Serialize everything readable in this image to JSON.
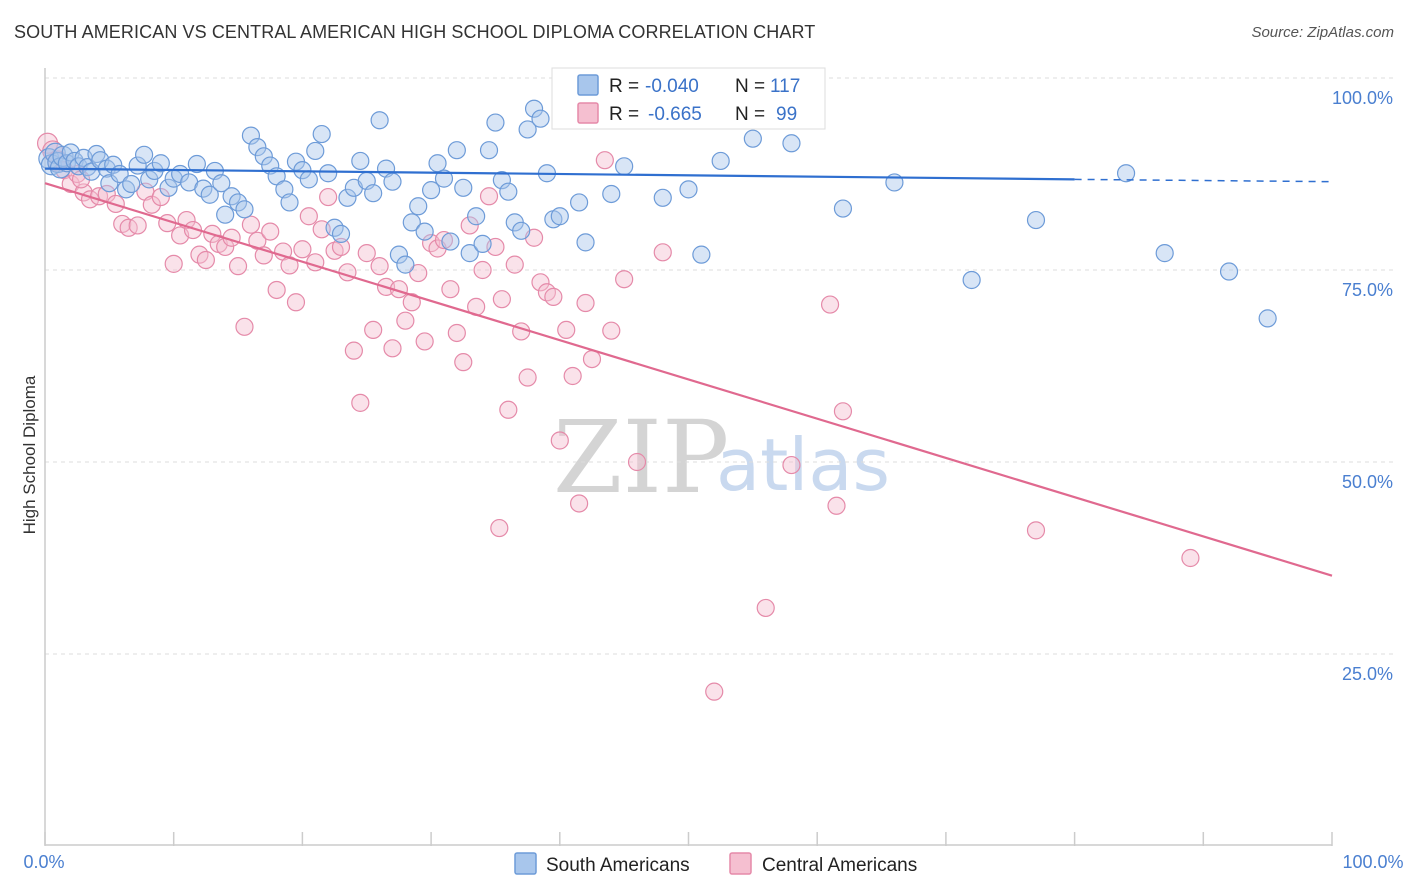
{
  "title": "SOUTH AMERICAN VS CENTRAL AMERICAN HIGH SCHOOL DIPLOMA CORRELATION CHART",
  "source": "Source: ZipAtlas.com",
  "watermark": {
    "zip": "ZIP",
    "atlas": "atlas"
  },
  "colors": {
    "blue_fill": "#a8c6ec",
    "blue_stroke": "#6d9bd8",
    "blue_line": "#2f6fd0",
    "pink_fill": "#f5bfd0",
    "pink_stroke": "#e58aa9",
    "pink_line": "#e0698f",
    "grid": "#dddddd",
    "tick_text": "#4a7fd0"
  },
  "legend_box": {
    "r_label": "R =",
    "n_label": "N =",
    "rows": [
      {
        "series": "South Americans",
        "r": "-0.040",
        "n": "117"
      },
      {
        "series": "Central Americans",
        "r": "-0.665",
        "n": "99"
      }
    ]
  },
  "bottom_legend": [
    "South Americans",
    "Central Americans"
  ],
  "chart_data": {
    "type": "scatter",
    "title": "SOUTH AMERICAN VS CENTRAL AMERICAN HIGH SCHOOL DIPLOMA CORRELATION CHART",
    "xlabel": "",
    "ylabel": "High School Diploma",
    "xlim": [
      0,
      100
    ],
    "ylim": [
      0,
      100
    ],
    "x_tick_labels": [
      "0.0%",
      "100.0%"
    ],
    "y_tick_labels": [
      "100.0%",
      "75.0%",
      "50.0%",
      "25.0%"
    ],
    "y_ticks": [
      100,
      75,
      50,
      25
    ],
    "grid": true,
    "series": [
      {
        "name": "South Americans",
        "r": -0.04,
        "n": 117,
        "trend": {
          "x_start": 0,
          "y_start": 88.2,
          "x_end": 80,
          "y_end": 86.8,
          "dashed_to_x": 100,
          "dashed_y_end": 86.5
        },
        "points": [
          [
            0.3,
            89.5
          ],
          [
            0.5,
            88.7
          ],
          [
            0.8,
            90.2
          ],
          [
            1.0,
            89.0
          ],
          [
            1.2,
            88.3
          ],
          [
            1.4,
            89.8
          ],
          [
            1.7,
            88.9
          ],
          [
            2.0,
            90.3
          ],
          [
            2.3,
            89.2
          ],
          [
            2.6,
            88.5
          ],
          [
            3.0,
            89.6
          ],
          [
            3.3,
            88.4
          ],
          [
            3.6,
            87.8
          ],
          [
            4.0,
            90.1
          ],
          [
            4.3,
            89.3
          ],
          [
            4.8,
            88.2
          ],
          [
            5.0,
            86.3
          ],
          [
            5.3,
            88.7
          ],
          [
            5.8,
            87.5
          ],
          [
            6.3,
            85.5
          ],
          [
            6.7,
            86.2
          ],
          [
            7.2,
            88.6
          ],
          [
            7.7,
            90.0
          ],
          [
            8.1,
            86.8
          ],
          [
            8.5,
            87.9
          ],
          [
            9.0,
            88.9
          ],
          [
            9.6,
            85.7
          ],
          [
            10.0,
            86.9
          ],
          [
            10.5,
            87.5
          ],
          [
            11.2,
            86.4
          ],
          [
            11.8,
            88.8
          ],
          [
            12.3,
            85.6
          ],
          [
            12.8,
            84.8
          ],
          [
            13.2,
            87.9
          ],
          [
            13.7,
            86.3
          ],
          [
            14.0,
            82.2
          ],
          [
            14.5,
            84.6
          ],
          [
            15.0,
            83.8
          ],
          [
            15.5,
            82.9
          ],
          [
            16.0,
            92.5
          ],
          [
            16.5,
            91.0
          ],
          [
            17.0,
            89.8
          ],
          [
            17.5,
            88.6
          ],
          [
            18.0,
            87.2
          ],
          [
            18.6,
            85.5
          ],
          [
            19.0,
            83.8
          ],
          [
            19.5,
            89.1
          ],
          [
            20.0,
            88.0
          ],
          [
            20.5,
            86.8
          ],
          [
            21.0,
            90.5
          ],
          [
            21.5,
            92.7
          ],
          [
            22.0,
            87.6
          ],
          [
            22.5,
            80.5
          ],
          [
            23.0,
            79.7
          ],
          [
            23.5,
            84.4
          ],
          [
            24.0,
            85.7
          ],
          [
            24.5,
            89.2
          ],
          [
            25.0,
            86.6
          ],
          [
            25.5,
            85.0
          ],
          [
            26.0,
            94.5
          ],
          [
            26.5,
            88.2
          ],
          [
            27.0,
            86.5
          ],
          [
            27.5,
            77.0
          ],
          [
            28.0,
            75.7
          ],
          [
            28.5,
            81.2
          ],
          [
            29.0,
            83.3
          ],
          [
            29.5,
            80.0
          ],
          [
            30.0,
            85.4
          ],
          [
            30.5,
            88.9
          ],
          [
            31.0,
            86.9
          ],
          [
            31.5,
            78.7
          ],
          [
            32.0,
            90.6
          ],
          [
            32.5,
            85.7
          ],
          [
            33.0,
            77.2
          ],
          [
            33.5,
            82.0
          ],
          [
            34.0,
            78.4
          ],
          [
            34.5,
            90.6
          ],
          [
            35.0,
            94.2
          ],
          [
            35.5,
            86.7
          ],
          [
            36.0,
            85.2
          ],
          [
            36.5,
            81.2
          ],
          [
            37.0,
            80.1
          ],
          [
            37.5,
            93.3
          ],
          [
            38.0,
            96.0
          ],
          [
            38.5,
            94.7
          ],
          [
            39.0,
            87.6
          ],
          [
            39.5,
            81.6
          ],
          [
            40.0,
            82.0
          ],
          [
            40.5,
            98.7
          ],
          [
            41.0,
            98.4
          ],
          [
            41.5,
            83.8
          ],
          [
            42.0,
            78.6
          ],
          [
            42.5,
            96.5
          ],
          [
            43.0,
            97.8
          ],
          [
            43.5,
            100.0
          ],
          [
            44.0,
            84.9
          ],
          [
            45.0,
            88.5
          ],
          [
            46.0,
            100.0
          ],
          [
            46.5,
            97.3
          ],
          [
            47.0,
            96.8
          ],
          [
            47.5,
            97.2
          ],
          [
            48.0,
            84.4
          ],
          [
            49.0,
            100.0
          ],
          [
            50.0,
            85.5
          ],
          [
            51.0,
            77.0
          ],
          [
            52.5,
            89.2
          ],
          [
            53.0,
            97.4
          ],
          [
            55.0,
            92.1
          ],
          [
            58.0,
            91.5
          ],
          [
            62.0,
            83.0
          ],
          [
            66.0,
            86.4
          ],
          [
            72.0,
            73.7
          ],
          [
            77.0,
            81.5
          ],
          [
            84.0,
            87.6
          ],
          [
            87.0,
            77.2
          ],
          [
            92.0,
            74.8
          ],
          [
            95.0,
            68.7
          ]
        ]
      },
      {
        "name": "Central Americans",
        "r": -0.665,
        "n": 99,
        "trend": {
          "x_start": 0,
          "y_start": 86.3,
          "x_end": 100,
          "y_end": 35.2
        },
        "points": [
          [
            0.2,
            91.5
          ],
          [
            0.6,
            90.5
          ],
          [
            1.0,
            89.2
          ],
          [
            1.5,
            88.0
          ],
          [
            2.0,
            86.2
          ],
          [
            2.5,
            87.5
          ],
          [
            3.0,
            85.1
          ],
          [
            3.5,
            84.2
          ],
          [
            4.2,
            84.6
          ],
          [
            4.8,
            84.9
          ],
          [
            5.5,
            83.6
          ],
          [
            6.0,
            81.0
          ],
          [
            6.5,
            80.5
          ],
          [
            7.2,
            80.8
          ],
          [
            7.8,
            85.2
          ],
          [
            8.3,
            83.5
          ],
          [
            9.0,
            84.5
          ],
          [
            9.5,
            81.1
          ],
          [
            10.0,
            75.8
          ],
          [
            10.5,
            79.5
          ],
          [
            11.0,
            81.5
          ],
          [
            11.5,
            80.2
          ],
          [
            12.0,
            77.0
          ],
          [
            12.5,
            76.3
          ],
          [
            13.0,
            79.7
          ],
          [
            13.5,
            78.4
          ],
          [
            14.0,
            78.0
          ],
          [
            14.5,
            79.2
          ],
          [
            15.0,
            75.5
          ],
          [
            15.5,
            67.6
          ],
          [
            16.0,
            80.9
          ],
          [
            16.5,
            78.8
          ],
          [
            17.0,
            76.9
          ],
          [
            17.5,
            80.0
          ],
          [
            18.0,
            72.4
          ],
          [
            18.5,
            77.4
          ],
          [
            19.0,
            75.6
          ],
          [
            19.5,
            70.8
          ],
          [
            20.0,
            77.7
          ],
          [
            20.5,
            82.0
          ],
          [
            21.0,
            76.0
          ],
          [
            21.5,
            80.3
          ],
          [
            22.0,
            84.5
          ],
          [
            22.5,
            77.5
          ],
          [
            23.0,
            78.0
          ],
          [
            23.5,
            74.7
          ],
          [
            24.0,
            64.5
          ],
          [
            24.5,
            57.7
          ],
          [
            25.0,
            77.2
          ],
          [
            25.5,
            67.2
          ],
          [
            26.0,
            75.5
          ],
          [
            26.5,
            72.8
          ],
          [
            27.0,
            64.8
          ],
          [
            27.5,
            72.5
          ],
          [
            28.0,
            68.4
          ],
          [
            28.5,
            70.8
          ],
          [
            29.0,
            74.6
          ],
          [
            29.5,
            65.7
          ],
          [
            30.0,
            78.5
          ],
          [
            30.5,
            77.8
          ],
          [
            31.0,
            78.9
          ],
          [
            31.5,
            72.5
          ],
          [
            32.0,
            66.8
          ],
          [
            32.5,
            63.0
          ],
          [
            33.0,
            80.8
          ],
          [
            33.5,
            70.2
          ],
          [
            34.0,
            75.0
          ],
          [
            34.5,
            84.6
          ],
          [
            35.0,
            78.0
          ],
          [
            35.5,
            71.2
          ],
          [
            36.0,
            56.8
          ],
          [
            36.5,
            75.7
          ],
          [
            37.0,
            67.0
          ],
          [
            37.5,
            61.0
          ],
          [
            38.0,
            79.2
          ],
          [
            38.5,
            73.4
          ],
          [
            39.0,
            72.1
          ],
          [
            39.5,
            71.5
          ],
          [
            40.0,
            52.8
          ],
          [
            40.5,
            67.2
          ],
          [
            41.0,
            61.2
          ],
          [
            41.5,
            44.6
          ],
          [
            42.0,
            70.7
          ],
          [
            42.5,
            63.4
          ],
          [
            43.5,
            89.3
          ],
          [
            44.0,
            67.1
          ],
          [
            45.0,
            73.8
          ],
          [
            46.0,
            50.0
          ],
          [
            48.0,
            77.3
          ],
          [
            52.0,
            20.1
          ],
          [
            56.0,
            31.0
          ],
          [
            58.0,
            49.6
          ],
          [
            61.0,
            70.5
          ],
          [
            62.0,
            56.6
          ],
          [
            61.5,
            44.3
          ],
          [
            35.3,
            41.4
          ],
          [
            77.0,
            41.1
          ],
          [
            89.0,
            37.5
          ],
          [
            2.8,
            86.8
          ]
        ]
      }
    ]
  }
}
